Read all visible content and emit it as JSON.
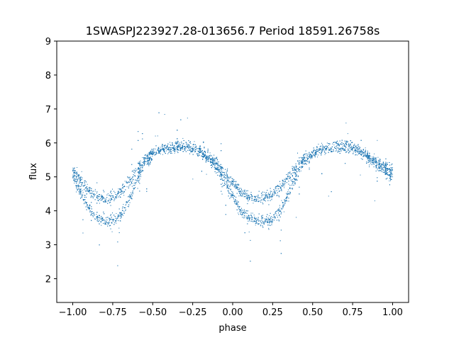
{
  "chart_data": {
    "type": "scatter",
    "title": "1SWASPJ223927.28-013656.7 Period 18591.26758s",
    "xlabel": "phase",
    "ylabel": "flux",
    "xlim": [
      -1.1,
      1.1
    ],
    "ylim": [
      1.3,
      9.0
    ],
    "xticks": [
      -1.0,
      -0.75,
      -0.5,
      -0.25,
      0.0,
      0.25,
      0.5,
      0.75,
      1.0
    ],
    "xtick_labels": [
      "−1.00",
      "−0.75",
      "−0.50",
      "−0.25",
      "0.00",
      "0.25",
      "0.50",
      "0.75",
      "1.00"
    ],
    "yticks": [
      2,
      3,
      4,
      5,
      6,
      7,
      8,
      9
    ],
    "ytick_labels": [
      "2",
      "3",
      "4",
      "5",
      "6",
      "7",
      "8",
      "9"
    ],
    "grid": false,
    "point_color": "#1f77b4",
    "series": [
      {
        "x": [
          -1.0,
          -0.95,
          -0.9,
          -0.85,
          -0.8,
          -0.75,
          -0.7,
          -0.65,
          -0.6,
          -0.55,
          -0.5,
          -0.45,
          -0.4,
          -0.35,
          -0.3,
          -0.25,
          -0.2,
          -0.15,
          -0.1,
          -0.05,
          0.0,
          0.05,
          0.1,
          0.15,
          0.2,
          0.25,
          0.3,
          0.35,
          0.4,
          0.45,
          0.5,
          0.55,
          0.6,
          0.65,
          0.7,
          0.75,
          0.8,
          0.85,
          0.9,
          0.95,
          1.0
        ],
        "y": [
          5.2,
          4.9,
          4.6,
          4.4,
          4.35,
          4.4,
          4.55,
          4.85,
          5.2,
          5.5,
          5.7,
          5.8,
          5.85,
          5.9,
          5.9,
          5.85,
          5.75,
          5.6,
          5.4,
          5.1,
          4.8,
          4.55,
          4.4,
          4.35,
          4.4,
          4.5,
          4.7,
          5.0,
          5.3,
          5.55,
          5.7,
          5.8,
          5.85,
          5.9,
          5.9,
          5.85,
          5.75,
          5.6,
          5.45,
          5.3,
          5.2
        ]
      },
      {
        "x": [
          -1.0,
          -0.95,
          -0.9,
          -0.85,
          -0.8,
          -0.75,
          -0.7,
          -0.65,
          -0.6,
          -0.55,
          -0.5,
          -0.45,
          -0.4,
          -0.35,
          -0.3,
          -0.25,
          -0.2,
          -0.15,
          -0.1,
          -0.05,
          0.0,
          0.05,
          0.1,
          0.15,
          0.2,
          0.25,
          0.3,
          0.35,
          0.4,
          0.45,
          0.5,
          0.55,
          0.6,
          0.65,
          0.7,
          0.75,
          0.8,
          0.85,
          0.9,
          0.95,
          1.0
        ],
        "y": [
          5.0,
          4.55,
          4.1,
          3.8,
          3.7,
          3.7,
          3.85,
          4.3,
          4.9,
          5.4,
          5.7,
          5.8,
          5.85,
          5.9,
          5.9,
          5.85,
          5.75,
          5.55,
          5.25,
          4.85,
          4.4,
          4.0,
          3.8,
          3.7,
          3.7,
          3.75,
          4.0,
          4.5,
          5.05,
          5.45,
          5.7,
          5.8,
          5.85,
          5.9,
          5.9,
          5.85,
          5.75,
          5.55,
          5.35,
          5.15,
          5.0
        ]
      }
    ]
  }
}
